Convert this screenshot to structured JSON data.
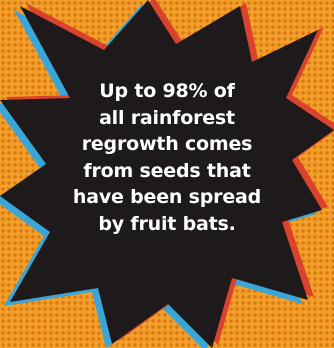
{
  "fact": {
    "lines": [
      "Up to 98% of",
      "all rainforest",
      "regrowth comes",
      "from seeds that",
      "have been spread",
      "by fruit bats."
    ]
  },
  "colors": {
    "background": "#f2a22a",
    "dots": "#e07a16",
    "burst": "#1e1a1c",
    "outline_blue": "#3aa6d8",
    "outline_red": "#d9432e",
    "text": "#ffffff"
  }
}
